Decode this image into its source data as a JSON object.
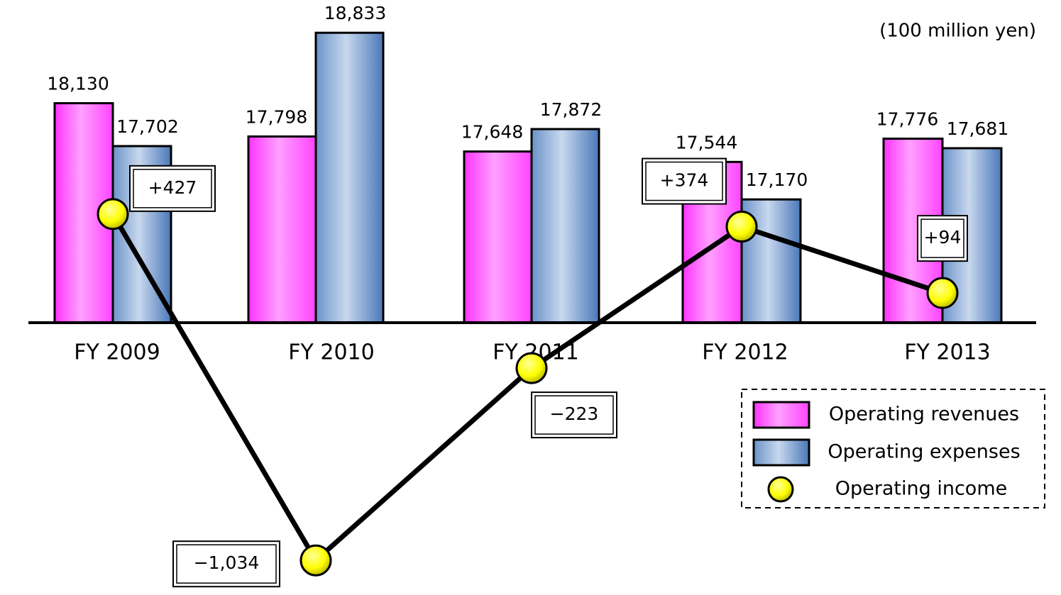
{
  "chart_data": {
    "type": "bar",
    "ylabel": "(100 million yen)",
    "categories": [
      "FY 2009",
      "FY 2010",
      "FY 2011",
      "FY 2012",
      "FY 2013"
    ],
    "ylim": [
      15940,
      19160
    ],
    "y2lim": [
      -1180,
      1330
    ],
    "series": [
      {
        "name": "Operating revenues",
        "type": "bar",
        "color": "#ff55ff",
        "values": [
          18130,
          17798,
          17648,
          17544,
          17776
        ],
        "value_labels": [
          "18,130",
          "17,798",
          "17,648",
          "17,544",
          "17,776"
        ]
      },
      {
        "name": "Operating expenses",
        "type": "bar",
        "color": "#5a86c0",
        "values": [
          17702,
          18833,
          17872,
          17170,
          17681
        ],
        "value_labels": [
          "17,702",
          "18,833",
          "17,872",
          "17,170",
          "17,681"
        ]
      },
      {
        "name": "Operating income",
        "type": "line",
        "axis": "y2",
        "color": "#ffff00",
        "line_color": "#000000",
        "values": [
          427,
          -1034,
          -223,
          374,
          94
        ],
        "value_labels": [
          "+427",
          "−1,034",
          "−223",
          "+374",
          "+94"
        ]
      }
    ],
    "legend": "bottom-right"
  }
}
